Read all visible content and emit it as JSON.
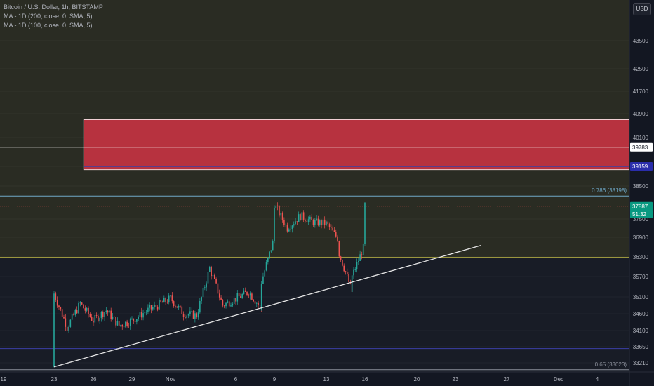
{
  "legend": {
    "symbol": "Bitcoin / U.S. Dollar, 1h, BITSTAMP",
    "ma200": "MA - 1D (200, close, 0, SMA, 5)",
    "ma100": "MA - 1D (100, close, 0, SMA, 5)"
  },
  "currency_button": "USD",
  "colors": {
    "background": "#131722",
    "upper_zone": "#2a2c23",
    "lower_zone": "#181c26",
    "supply_zone": "#b7323f",
    "up_candle": "#26a69a",
    "down_candle": "#ef5350",
    "trendline": "#e8e8e8",
    "yellow_level": "#d8d04a",
    "blue_level": "#3b3fa6",
    "fib_line": "#6fa8c8",
    "last_price_bg": "#089981",
    "level_label_bg": "#2a2dab"
  },
  "chart_data": {
    "type": "candlestick",
    "y_axis": {
      "ticks": [
        43500,
        42500,
        41700,
        40900,
        40100,
        38500,
        37500,
        36900,
        36300,
        35700,
        35100,
        34600,
        34100,
        33650,
        33210
      ],
      "range": [
        33000,
        44000
      ]
    },
    "x_axis": {
      "ticks": [
        "19",
        "23",
        "26",
        "29",
        "Nov",
        "6",
        "9",
        "13",
        "16",
        "20",
        "23",
        "27",
        "Dec",
        "4"
      ]
    },
    "price_labels": [
      {
        "id": "white-level",
        "text": "39783",
        "style": "white"
      },
      {
        "id": "blue-level",
        "text": "39159",
        "style": "blue"
      },
      {
        "id": "last-price",
        "text": "37887",
        "style": "green"
      },
      {
        "id": "countdown",
        "text": "51:32",
        "style": "green"
      }
    ],
    "fib_labels": {
      "fib_786": "0.786 (38198)",
      "fib_65": "0.65 (33023)"
    },
    "levels": {
      "white_line": 39783,
      "blue_line": 39159,
      "fib_786": 38198,
      "yellow_line": 36280,
      "lower_blue": 33600,
      "fib_65": 33023
    },
    "supply_zone": {
      "from_date": "25",
      "to_date": "Dec 4",
      "top": 40700,
      "bottom": 39050
    },
    "trendline": {
      "start": [
        "23",
        33100
      ],
      "end": [
        "25 Nov",
        36650
      ]
    },
    "candle_path": [
      [
        "23",
        33100
      ],
      [
        "23",
        35200
      ],
      [
        "24",
        34200
      ],
      [
        "25",
        34900
      ],
      [
        "26",
        34400
      ],
      [
        "27",
        34700
      ],
      [
        "28",
        34250
      ],
      [
        "29",
        34400
      ],
      [
        "30",
        34650
      ],
      [
        "31",
        34850
      ],
      [
        "1",
        35050
      ],
      [
        "2",
        34600
      ],
      [
        "3",
        34550
      ],
      [
        "4",
        35950
      ],
      [
        "5",
        34850
      ],
      [
        "6",
        35050
      ],
      [
        "7",
        35250
      ],
      [
        "8",
        34750
      ],
      [
        "8",
        35550
      ],
      [
        "9",
        36900
      ],
      [
        "9",
        37950
      ],
      [
        "10",
        37200
      ],
      [
        "11",
        37600
      ],
      [
        "12",
        37400
      ],
      [
        "13",
        37350
      ],
      [
        "14",
        36800
      ],
      [
        "14",
        36400
      ],
      [
        "15",
        35250
      ],
      [
        "15",
        35700
      ],
      [
        "16",
        36700
      ],
      [
        "16",
        37887
      ]
    ]
  }
}
